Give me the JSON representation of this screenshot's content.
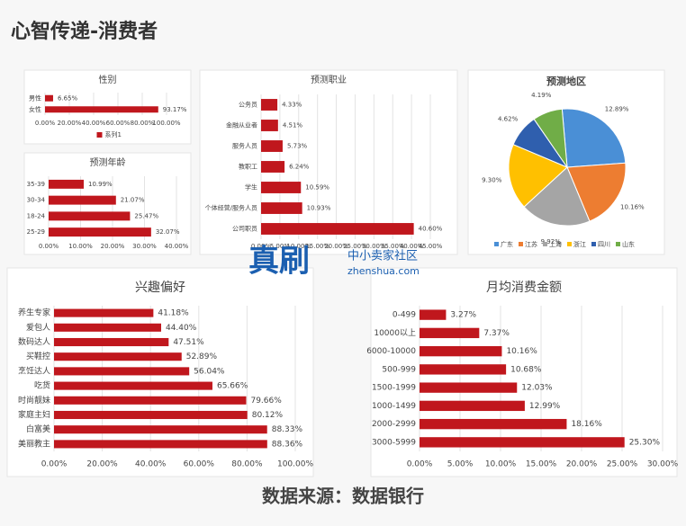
{
  "header": {
    "title": "心智传递-消费者"
  },
  "footer": {
    "source": "数据来源：数据银行"
  },
  "watermark": {
    "brand": "真刷",
    "community": "中小卖家社区",
    "site": "zhenshua.com"
  },
  "chart_data": [
    {
      "type": "bar",
      "orientation": "horizontal",
      "title": "性别",
      "categories": [
        "男性",
        "女性"
      ],
      "series": [
        {
          "name": "系列1",
          "color": "#c0171d",
          "values": [
            6.65,
            93.17
          ],
          "value_labels": [
            "6.65%",
            "93.17%"
          ]
        }
      ],
      "xlim": [
        0,
        100
      ],
      "xticks": [
        {
          "value": 0,
          "label": "0.00%"
        },
        {
          "value": 20,
          "label": "20.00%"
        },
        {
          "value": 40,
          "label": "40.00%"
        },
        {
          "value": 60,
          "label": "60.00%"
        },
        {
          "value": 80,
          "label": "80.00%"
        },
        {
          "value": 100,
          "label": "100.00%"
        }
      ],
      "grid": true,
      "legend": "bottom"
    },
    {
      "type": "bar",
      "orientation": "horizontal",
      "title": "预测年龄",
      "categories": [
        "35-39",
        "30-34",
        "18-24",
        "25-29"
      ],
      "values": [
        10.99,
        21.07,
        25.47,
        32.07
      ],
      "value_labels": [
        "10.99%",
        "21.07%",
        "25.47%",
        "32.07%"
      ],
      "color": "#c0171d",
      "xlim": [
        0,
        40
      ],
      "xticks": [
        {
          "value": 0,
          "label": "0.00%"
        },
        {
          "value": 10,
          "label": "10.00%"
        },
        {
          "value": 20,
          "label": "20.00%"
        },
        {
          "value": 30,
          "label": "30.00%"
        },
        {
          "value": 40,
          "label": "40.00%"
        }
      ],
      "grid": true
    },
    {
      "type": "bar",
      "orientation": "horizontal",
      "title": "预测职业",
      "categories": [
        "公务员",
        "金融从业者",
        "服务人员",
        "教职工",
        "学生",
        "个体经营/服务人员",
        "公司职员"
      ],
      "values": [
        4.33,
        4.51,
        5.73,
        6.24,
        10.59,
        10.93,
        40.6
      ],
      "value_labels": [
        "4.33%",
        "4.51%",
        "5.73%",
        "6.24%",
        "10.59%",
        "10.93%",
        "40.60%"
      ],
      "color": "#c0171d",
      "xlim": [
        0,
        45
      ],
      "xticks": [
        {
          "value": 0,
          "label": "0.00%"
        },
        {
          "value": 5,
          "label": "5.00%"
        },
        {
          "value": 10,
          "label": "10.00%"
        },
        {
          "value": 15,
          "label": "15.00%"
        },
        {
          "value": 20,
          "label": "20.00%"
        },
        {
          "value": 25,
          "label": "25.00%"
        },
        {
          "value": 30,
          "label": "30.00%"
        },
        {
          "value": 35,
          "label": "35.00%"
        },
        {
          "value": 40,
          "label": "40.00%"
        },
        {
          "value": 45,
          "label": "45.00%"
        }
      ],
      "grid": true
    },
    {
      "type": "pie",
      "title": "预测地区",
      "categories": [
        "广东",
        "江苏",
        "上海",
        "浙江",
        "四川",
        "山东"
      ],
      "values": [
        12.89,
        10.16,
        9.92,
        9.3,
        4.62,
        4.19
      ],
      "value_labels": [
        "12.89%",
        "10.16%",
        "9.92%",
        "9.30%",
        "4.62%",
        "4.19%"
      ],
      "colors": [
        "#4a8fd6",
        "#ed7d31",
        "#a5a5a5",
        "#ffc000",
        "#2f5fae",
        "#70ad47"
      ],
      "legend": "bottom"
    },
    {
      "type": "bar",
      "orientation": "horizontal",
      "title": "兴趣偏好",
      "categories": [
        "养生专家",
        "爱包人",
        "数码达人",
        "买鞋控",
        "烹饪达人",
        "吃货",
        "时尚靓妹",
        "家庭主妇",
        "白富美",
        "美丽教主"
      ],
      "values": [
        41.18,
        44.4,
        47.51,
        52.89,
        56.04,
        65.66,
        79.66,
        80.12,
        88.33,
        88.36
      ],
      "value_labels": [
        "41.18%",
        "44.40%",
        "47.51%",
        "52.89%",
        "56.04%",
        "65.66%",
        "79.66%",
        "80.12%",
        "88.33%",
        "88.36%"
      ],
      "color": "#c0171d",
      "xlim": [
        0,
        100
      ],
      "xticks": [
        {
          "value": 0,
          "label": "0.00%"
        },
        {
          "value": 20,
          "label": "20.00%"
        },
        {
          "value": 40,
          "label": "40.00%"
        },
        {
          "value": 60,
          "label": "60.00%"
        },
        {
          "value": 80,
          "label": "80.00%"
        },
        {
          "value": 100,
          "label": "100.00%"
        }
      ],
      "grid": true
    },
    {
      "type": "bar",
      "orientation": "horizontal",
      "title": "月均消费金额",
      "categories": [
        "0-499",
        "10000以上",
        "6000-10000",
        "500-999",
        "1500-1999",
        "1000-1499",
        "2000-2999",
        "3000-5999"
      ],
      "values": [
        3.27,
        7.37,
        10.16,
        10.68,
        12.03,
        12.99,
        18.16,
        25.3
      ],
      "value_labels": [
        "3.27%",
        "7.37%",
        "10.16%",
        "10.68%",
        "12.03%",
        "12.99%",
        "18.16%",
        "25.30%"
      ],
      "color": "#c0171d",
      "xlim": [
        0,
        30
      ],
      "xticks": [
        {
          "value": 0,
          "label": "0.00%"
        },
        {
          "value": 5,
          "label": "5.00%"
        },
        {
          "value": 10,
          "label": "10.00%"
        },
        {
          "value": 15,
          "label": "15.00%"
        },
        {
          "value": 20,
          "label": "20.00%"
        },
        {
          "value": 25,
          "label": "25.00%"
        },
        {
          "value": 30,
          "label": "30.00%"
        }
      ],
      "grid": true
    }
  ]
}
